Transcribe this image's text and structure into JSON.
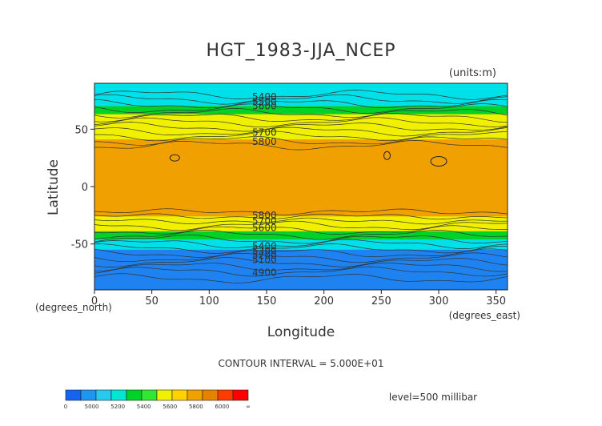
{
  "chart_data": {
    "type": "contour",
    "title": "HGT_1983-JJA_NCEP",
    "units": "(units:m)",
    "xlabel": "Longitude",
    "ylabel": "Latitude",
    "x_unit_note": "(degrees_east)",
    "y_unit_note": "(degrees_north)",
    "xlim": [
      0,
      360
    ],
    "ylim": [
      -90,
      90
    ],
    "x_ticks": [
      0,
      50,
      100,
      150,
      200,
      250,
      300,
      350
    ],
    "y_ticks": [
      50,
      0,
      -50
    ],
    "contour_interval_text": "CONTOUR INTERVAL = 5.000E+01",
    "level_text": "level=500 millibar",
    "contour_labels": [
      {
        "text": "5400",
        "lon": 130,
        "lat": 78
      },
      {
        "text": "5500",
        "lon": 130,
        "lat": 74
      },
      {
        "text": "5600",
        "lon": 130,
        "lat": 70
      },
      {
        "text": "5700",
        "lon": 130,
        "lat": 47
      },
      {
        "text": "5800",
        "lon": 130,
        "lat": 39
      },
      {
        "text": "5800",
        "lon": 130,
        "lat": -25
      },
      {
        "text": "5700",
        "lon": 130,
        "lat": -30
      },
      {
        "text": "5600",
        "lon": 130,
        "lat": -36
      },
      {
        "text": "5400",
        "lon": 130,
        "lat": -52
      },
      {
        "text": "5300",
        "lon": 130,
        "lat": -56
      },
      {
        "text": "5200",
        "lon": 130,
        "lat": -60
      },
      {
        "text": "5100",
        "lon": 130,
        "lat": -64
      },
      {
        "text": "4900",
        "lon": 130,
        "lat": -75
      }
    ],
    "bands": [
      {
        "from": 70,
        "to": 90,
        "value_range": "5200-5400"
      },
      {
        "from": 63,
        "to": 70,
        "value_range": "5400-5600"
      },
      {
        "from": 41,
        "to": 63,
        "value_range": "5600-5800"
      },
      {
        "from": -26,
        "to": 41,
        "value_range": "5800-6000"
      },
      {
        "from": -39,
        "to": -26,
        "value_range": "5600-5800"
      },
      {
        "from": -46,
        "to": -39,
        "value_range": "5400-5600"
      },
      {
        "from": -55,
        "to": -46,
        "value_range": "5200-5400"
      },
      {
        "from": -90,
        "to": -55,
        "value_range": "0-5200"
      }
    ],
    "colorbar": {
      "labels": [
        "0",
        "5000",
        "5200",
        "5400",
        "5600",
        "5800",
        "6000",
        "∞"
      ],
      "colors": [
        "#1464f0",
        "#1e96f0",
        "#28c8f0",
        "#00e6d2",
        "#00d228",
        "#32e632",
        "#f0f000",
        "#ffd200",
        "#f0a000",
        "#e68200",
        "#ff3c00",
        "#ff0000"
      ]
    }
  }
}
